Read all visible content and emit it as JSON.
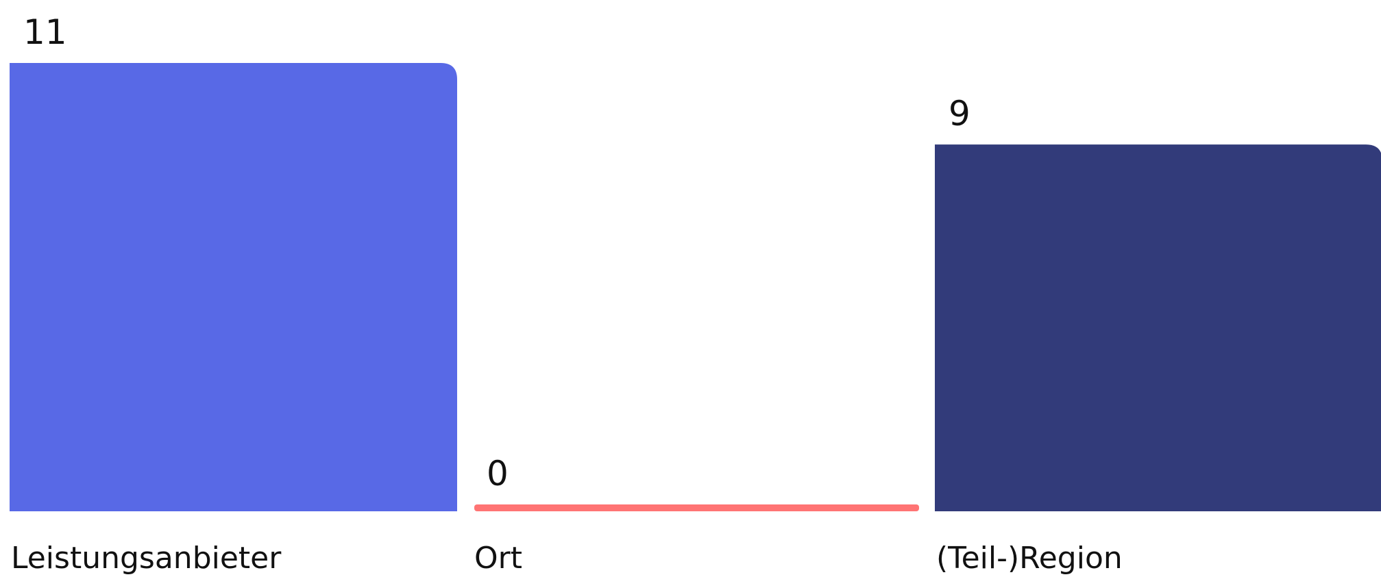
{
  "chart_data": {
    "type": "bar",
    "categories": [
      "Leistungsanbieter",
      "Ort",
      "(Teil-)Region"
    ],
    "values": [
      11,
      0,
      9
    ],
    "colors": [
      "#5869E6",
      "#FF7474",
      "#323B7A"
    ],
    "ylim": [
      0,
      11
    ],
    "grid": false,
    "legend": "none"
  }
}
